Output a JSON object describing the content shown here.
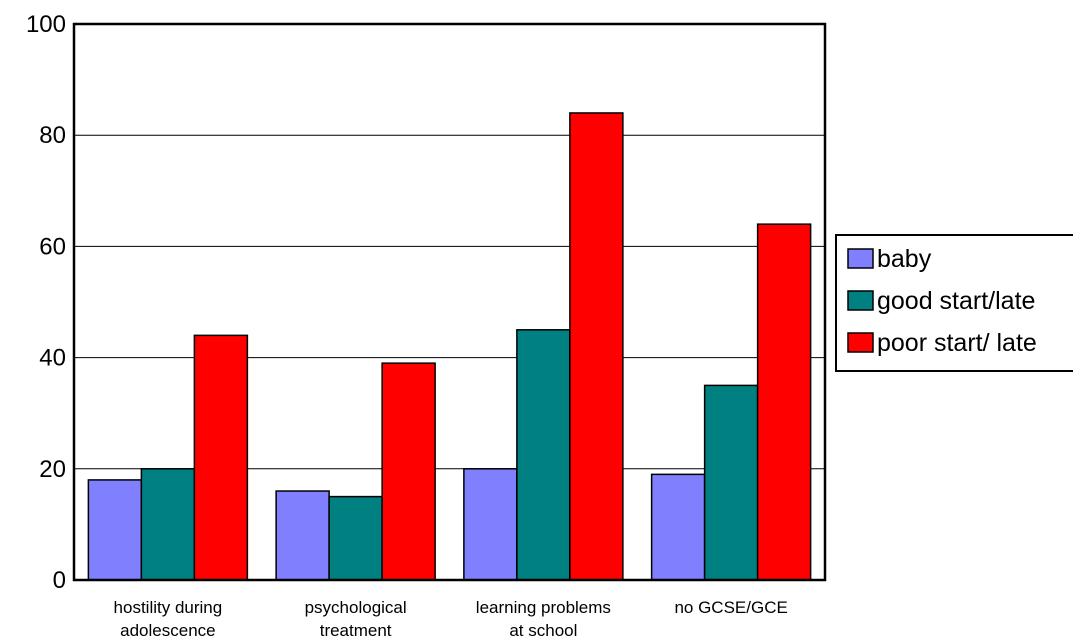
{
  "chart_data": {
    "type": "bar",
    "categories": [
      [
        "hostility during",
        "adolescence"
      ],
      [
        "psychological",
        "treatment"
      ],
      [
        "learning problems",
        "at school"
      ],
      [
        "no GCSE/GCE"
      ]
    ],
    "series": [
      {
        "name": "baby",
        "color": "#8080ff",
        "values": [
          18,
          16,
          20,
          19
        ]
      },
      {
        "name": "good start/late",
        "color": "#008080",
        "values": [
          20,
          15,
          45,
          35
        ]
      },
      {
        "name": "poor start/ late",
        "color": "#ff0000",
        "values": [
          44,
          39,
          84,
          64
        ]
      }
    ],
    "y_ticks": [
      "0",
      "20",
      "40",
      "60",
      "80",
      "100"
    ],
    "ylim": [
      0,
      100
    ],
    "grid": true,
    "legend_position": "right"
  }
}
